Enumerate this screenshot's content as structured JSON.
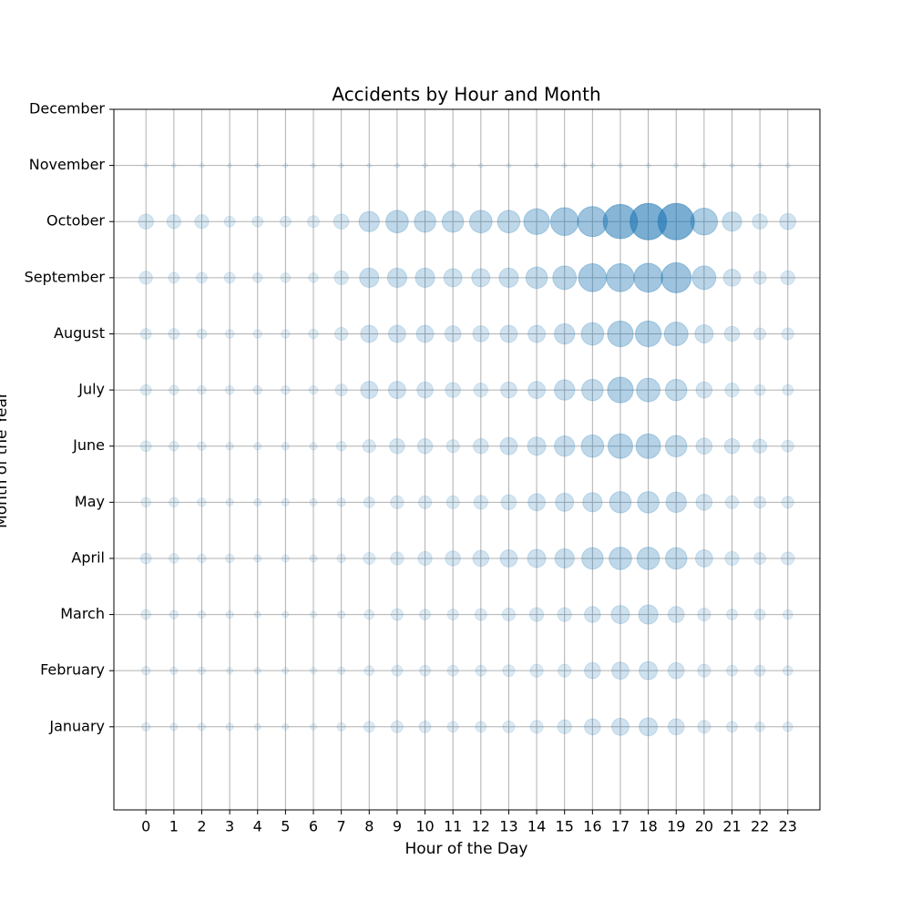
{
  "chart_data": {
    "type": "bubble",
    "title": "Accidents by Hour and Month",
    "x_label": "Hour of the Day",
    "y_label": "Month of the Year",
    "color": "#1f77b4",
    "grid": true,
    "x": [
      0,
      1,
      2,
      3,
      4,
      5,
      6,
      7,
      8,
      9,
      10,
      11,
      12,
      13,
      14,
      15,
      16,
      17,
      18,
      19,
      20,
      21,
      22,
      23
    ],
    "xlim": [
      -1.15,
      24.15
    ],
    "xticks": [
      0,
      1,
      2,
      3,
      4,
      5,
      6,
      7,
      8,
      9,
      10,
      11,
      12,
      13,
      14,
      15,
      16,
      17,
      18,
      19,
      20,
      21,
      22,
      23
    ],
    "ylim": [
      -1.48,
      11
    ],
    "yticks": [
      {
        "value": 0,
        "label": "January"
      },
      {
        "value": 1,
        "label": "February"
      },
      {
        "value": 2,
        "label": "March"
      },
      {
        "value": 3,
        "label": "April"
      },
      {
        "value": 4,
        "label": "May"
      },
      {
        "value": 5,
        "label": "June"
      },
      {
        "value": 6,
        "label": "July"
      },
      {
        "value": 7,
        "label": "August"
      },
      {
        "value": 8,
        "label": "September"
      },
      {
        "value": 9,
        "label": "October"
      },
      {
        "value": 10,
        "label": "November"
      },
      {
        "value": 11,
        "label": "December"
      }
    ],
    "rows": [
      {
        "y": 0,
        "sizes": [
          16,
          12,
          12,
          12,
          9,
          9,
          9,
          16,
          25,
          30,
          30,
          25,
          25,
          30,
          36,
          42,
          56,
          64,
          72,
          56,
          36,
          25,
          20,
          20
        ]
      },
      {
        "y": 1,
        "sizes": [
          16,
          12,
          12,
          9,
          9,
          9,
          9,
          12,
          20,
          25,
          25,
          25,
          25,
          30,
          36,
          36,
          56,
          64,
          72,
          56,
          36,
          25,
          25,
          20
        ]
      },
      {
        "y": 2,
        "sizes": [
          20,
          16,
          12,
          12,
          9,
          9,
          9,
          12,
          20,
          30,
          25,
          25,
          30,
          36,
          42,
          42,
          56,
          72,
          81,
          56,
          36,
          25,
          25,
          20
        ]
      },
      {
        "y": 3,
        "sizes": [
          25,
          20,
          16,
          16,
          12,
          12,
          12,
          16,
          30,
          36,
          42,
          49,
          56,
          64,
          72,
          81,
          100,
          110,
          110,
          100,
          64,
          42,
          30,
          36
        ]
      },
      {
        "y": 4,
        "sizes": [
          20,
          20,
          16,
          12,
          12,
          12,
          12,
          16,
          25,
          36,
          36,
          36,
          42,
          49,
          64,
          72,
          81,
          100,
          100,
          90,
          56,
          36,
          30,
          30
        ]
      },
      {
        "y": 5,
        "sizes": [
          25,
          20,
          16,
          12,
          12,
          12,
          12,
          20,
          36,
          49,
          49,
          36,
          49,
          64,
          72,
          90,
          110,
          132,
          132,
          100,
          56,
          49,
          42,
          30
        ]
      },
      {
        "y": 6,
        "sizes": [
          25,
          20,
          16,
          16,
          16,
          16,
          16,
          30,
          64,
          64,
          56,
          49,
          42,
          56,
          64,
          90,
          100,
          144,
          121,
          100,
          56,
          42,
          25,
          25
        ]
      },
      {
        "y": 7,
        "sizes": [
          25,
          25,
          20,
          16,
          16,
          16,
          20,
          36,
          64,
          64,
          64,
          56,
          56,
          64,
          64,
          90,
          110,
          144,
          144,
          121,
          72,
          49,
          30,
          30
        ]
      },
      {
        "y": 8,
        "sizes": [
          36,
          25,
          25,
          25,
          20,
          20,
          20,
          42,
          81,
          81,
          81,
          72,
          72,
          81,
          100,
          121,
          169,
          169,
          182,
          196,
          121,
          64,
          36,
          42
        ]
      },
      {
        "y": 9,
        "sizes": [
          49,
          42,
          42,
          25,
          25,
          25,
          30,
          49,
          90,
          110,
          100,
          100,
          110,
          110,
          144,
          169,
          196,
          256,
          289,
          289,
          156,
          81,
          49,
          56
        ]
      },
      {
        "y": 10,
        "sizes": [
          4,
          4,
          4,
          4,
          4,
          4,
          4,
          4,
          4,
          4,
          4,
          4,
          4,
          4,
          4,
          4,
          4,
          4,
          4,
          4,
          4,
          4,
          4,
          4
        ]
      }
    ]
  }
}
